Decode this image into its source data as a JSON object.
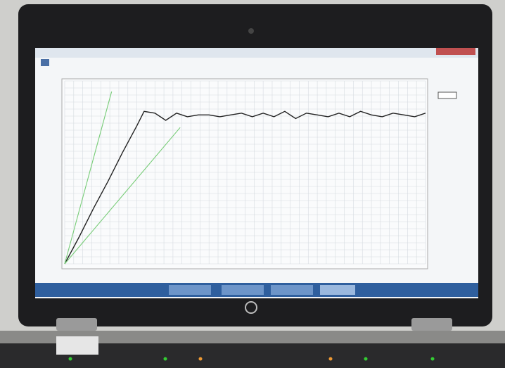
{
  "chart_data": {
    "type": "line",
    "xlim": [
      0,
      100
    ],
    "ylim": [
      0,
      100
    ],
    "grid": true,
    "series": [
      {
        "color": "#222222",
        "x": [
          0,
          4,
          8,
          12,
          16,
          20,
          22,
          25,
          28,
          31,
          34,
          37,
          40,
          43,
          46,
          49,
          52,
          55,
          58,
          61,
          64,
          67,
          70,
          73,
          76,
          79,
          82,
          85,
          88,
          91,
          94,
          97,
          100
        ],
        "values": [
          0,
          15,
          31,
          46,
          62,
          77,
          85,
          84,
          80,
          84,
          82,
          83,
          83,
          82,
          83,
          84,
          82,
          84,
          82,
          85,
          81,
          84,
          83,
          82,
          84,
          82,
          85,
          83,
          82,
          84,
          83,
          82,
          84
        ]
      },
      {
        "color": "#77cc77",
        "x": [
          0,
          13
        ],
        "values": [
          0,
          96
        ]
      },
      {
        "color": "#77cc77",
        "x": [
          0,
          32
        ],
        "values": [
          0,
          76
        ]
      }
    ]
  }
}
